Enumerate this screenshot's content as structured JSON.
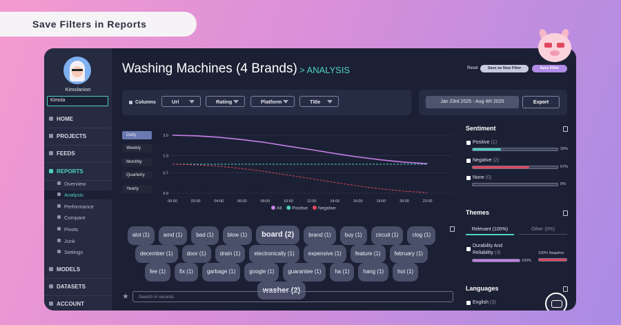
{
  "banner": {
    "title": "Save Filters in Reports"
  },
  "sidebar": {
    "user": "Kimolanion",
    "workspace": "Kimola",
    "nav_top": [
      "HOME",
      "PROJECTS",
      "FEEDS",
      "REPORTS"
    ],
    "report_items": [
      "Overview",
      "Analysis",
      "Performance",
      "Compare",
      "Pivots",
      "Junk",
      "Settings"
    ],
    "nav_bottom": [
      "MODELS",
      "DATASETS",
      "ACCOUNT"
    ]
  },
  "header": {
    "title": "Washing Machines (4 Brands)",
    "crumb": "> ANALYSIS",
    "actions": [
      "Reset",
      "Save as New Filter",
      "Save Filter"
    ]
  },
  "toolbar": {
    "columns": "Columns",
    "filters": [
      "Url",
      "Rating",
      "Platform",
      "Title"
    ],
    "date_range": "Jan 23rd 2025 - Aug 4th 2025",
    "export": "Export"
  },
  "periods": [
    "Daily",
    "Weekly",
    "Monthly",
    "Quarterly",
    "Yearly"
  ],
  "chart_data": {
    "type": "line",
    "categories": [
      "00:00",
      "02:00",
      "04:00",
      "06:00",
      "08:00",
      "10:00",
      "12:00",
      "14:00",
      "16:00",
      "18:00",
      "20:00",
      "22:00"
    ],
    "series": [
      {
        "name": "All",
        "color": "#c77fe6",
        "values": [
          2.0,
          1.98,
          1.93,
          1.85,
          1.75,
          1.62,
          1.5,
          1.37,
          1.25,
          1.15,
          1.07,
          1.02
        ]
      },
      {
        "name": "Positive",
        "color": "#4fd1c5",
        "dashed": true,
        "values": [
          1.0,
          1.0,
          1.0,
          1.0,
          1.0,
          1.0,
          1.0,
          1.0,
          1.0,
          1.0,
          1.0,
          1.0
        ]
      },
      {
        "name": "Negative",
        "color": "#e0485e",
        "dashed": true,
        "values": [
          1.0,
          0.98,
          0.93,
          0.85,
          0.75,
          0.62,
          0.5,
          0.37,
          0.25,
          0.15,
          0.07,
          0.02
        ]
      }
    ],
    "ylim": [
      0,
      2
    ],
    "yticks": [
      {
        "value": 0,
        "label": "0.0"
      },
      0.7,
      1.3,
      {
        "value": 2,
        "label": "2.0"
      }
    ],
    "grid": true
  },
  "tags": [
    "alot (1)",
    "amd (1)",
    "bad (1)",
    "blow (1)",
    "board (2)",
    "brand (1)",
    "buy (1)",
    "circuit (1)",
    "clog (1)",
    "december (1)",
    "door (1)",
    "drain (1)",
    "electronically (1)",
    "expensive (1)",
    "feature (1)",
    "february (1)",
    "fee (1)",
    "fix (1)",
    "garbage (1)",
    "google (1)",
    "guarantee (1)",
    "ha (1)",
    "hang (1)",
    "hot (1)",
    "washer (2)"
  ],
  "search_placeholder": "Search in records",
  "sentiment": {
    "title": "Sentiment",
    "items": [
      {
        "label": "Positive",
        "count": "(1)",
        "value": 33,
        "value_label": "33%",
        "color": "#4fd1c5"
      },
      {
        "label": "Negative",
        "count": "(2)",
        "value": 67,
        "value_label": "67%",
        "color": "#e0485e"
      },
      {
        "label": "None",
        "count": "(0)",
        "value": 0,
        "value_label": "0%",
        "color": "#8a90a8"
      }
    ]
  },
  "themes": {
    "title": "Themes",
    "tabs": [
      "Relevant (100%)",
      "Other (0%)"
    ],
    "item": {
      "label": "Durability And Reliability",
      "count": "(3)",
      "relevance": 100,
      "relevance_label": "100%",
      "negative": 100,
      "negative_label": "100% Negative"
    }
  },
  "languages": {
    "title": "Languages",
    "item": {
      "label": "English",
      "count": "(3)"
    }
  }
}
